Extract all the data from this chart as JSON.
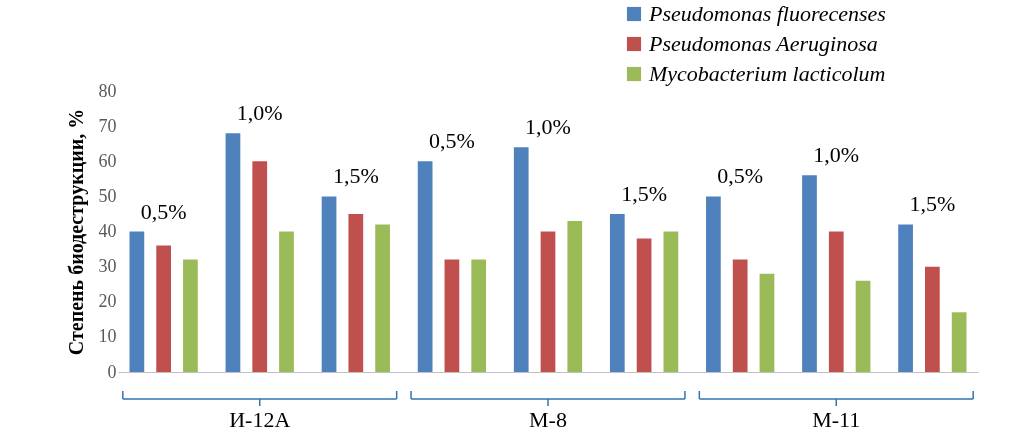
{
  "chart_data": {
    "type": "bar",
    "ylabel": "Степень биодеструкции, %",
    "categories": [
      null,
      null,
      null,
      null,
      null,
      null,
      null,
      null,
      null
    ],
    "series": [
      {
        "name": "Pseudomonas fluorecenses",
        "color": "#4f81bd",
        "values": [
          40,
          68,
          50,
          60,
          64,
          45,
          50,
          56,
          42
        ]
      },
      {
        "name": "Pseudomonas Aeruginosa",
        "color": "#c0504d",
        "values": [
          36,
          60,
          45,
          32,
          40,
          38,
          32,
          40,
          30
        ]
      },
      {
        "name": "Mycobacterium lacticolum",
        "color": "#9bbb59",
        "values": [
          32,
          40,
          42,
          32,
          43,
          40,
          28,
          26,
          17
        ]
      }
    ],
    "annotations": [
      "0,5%",
      "1,0%",
      "1,5%",
      "0,5%",
      "1,0%",
      "1,5%",
      "0,5%",
      "1,0%",
      "1,5%",
      "И-12А",
      "М-8",
      "М-11"
    ],
    "ylim": [
      0,
      80
    ],
    "yticks": [
      0,
      10,
      20,
      30,
      40,
      50,
      60,
      70,
      80
    ],
    "grid": false,
    "legend": "top right"
  }
}
